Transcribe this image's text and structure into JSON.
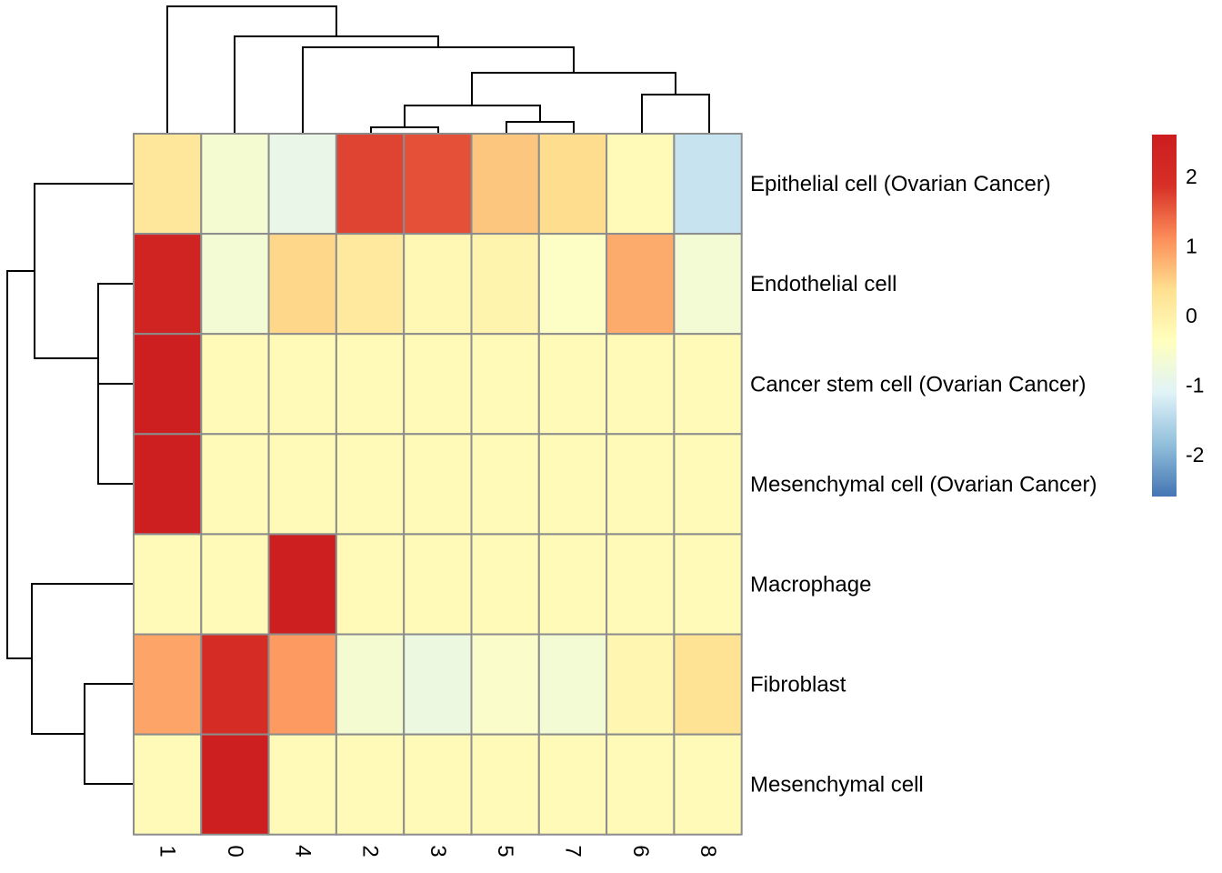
{
  "chart_data": {
    "type": "heatmap",
    "title": "",
    "xlabel": "",
    "ylabel": "",
    "columns": [
      "1",
      "0",
      "4",
      "2",
      "3",
      "5",
      "7",
      "6",
      "8"
    ],
    "rows": [
      "Epithelial cell (Ovarian Cancer)",
      "Endothelial cell",
      "Cancer stem cell (Ovarian Cancer)",
      "Mesenchymal cell (Ovarian Cancer)",
      "Macrophage",
      "Fibroblast",
      "Mesenchymal cell"
    ],
    "values": [
      [
        0.2,
        -0.6,
        -0.9,
        1.7,
        1.6,
        0.6,
        0.4,
        -0.25,
        -1.35
      ],
      [
        2.3,
        -0.65,
        0.45,
        0.15,
        -0.2,
        -0.1,
        -0.45,
        0.85,
        -0.65
      ],
      [
        2.5,
        -0.25,
        -0.25,
        -0.25,
        -0.25,
        -0.25,
        -0.25,
        -0.25,
        -0.25
      ],
      [
        2.5,
        -0.25,
        -0.25,
        -0.25,
        -0.25,
        -0.25,
        -0.25,
        -0.25,
        -0.25
      ],
      [
        -0.25,
        -0.25,
        2.5,
        -0.25,
        -0.25,
        -0.25,
        -0.25,
        -0.25,
        -0.25
      ],
      [
        0.9,
        2.0,
        1.0,
        -0.6,
        -0.8,
        -0.5,
        -0.65,
        -0.15,
        0.3
      ],
      [
        -0.25,
        2.5,
        -0.25,
        -0.25,
        -0.25,
        -0.25,
        -0.25,
        -0.25,
        -0.25
      ]
    ],
    "color_scale": {
      "min": -2.6,
      "max": 2.6,
      "colors": [
        "#4575b4",
        "#91bfdb",
        "#e0f3f8",
        "#ffffbf",
        "#fee090",
        "#fc8d59",
        "#d73027",
        "#cc1c1f"
      ]
    },
    "legend": {
      "ticks": [
        2,
        1,
        0,
        -1,
        -2
      ],
      "labels": [
        "2",
        "1",
        "0",
        "-1",
        "-2"
      ],
      "position": "right"
    },
    "column_dendrogram": true,
    "row_dendrogram": true
  }
}
